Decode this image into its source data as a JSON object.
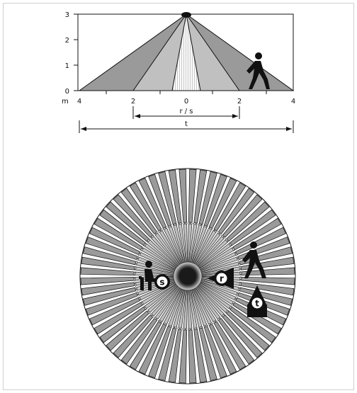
{
  "side_view": {
    "y_ticks": [
      "0",
      "1",
      "2",
      "3"
    ],
    "unit": "m",
    "x_ticks_left": [
      "4",
      "2"
    ],
    "x_tick_center": "0",
    "x_ticks_right": [
      "2",
      "4"
    ],
    "dimension_inner": "r / s",
    "dimension_outer": "t"
  },
  "top_view": {
    "zone_markers": [
      "s",
      "r",
      "t"
    ]
  },
  "colors": {
    "outer_zone": "#9a9a9a",
    "middle_zone": "#c0c0c0",
    "inner_zone": "#e6e6e6",
    "outline": "#111111"
  }
}
